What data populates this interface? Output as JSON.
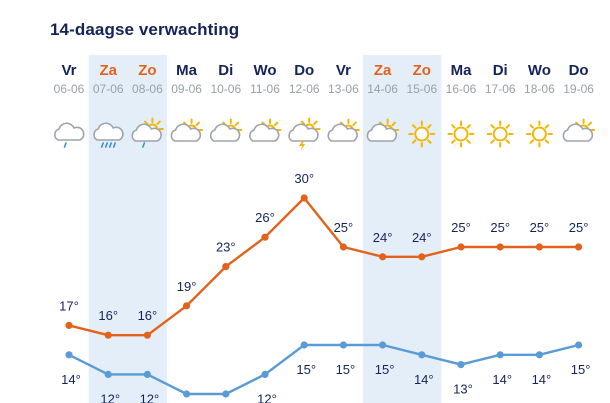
{
  "header": {
    "title": "14-daagse verwachting"
  },
  "colors": {
    "max_line": "#e2621b",
    "min_line": "#5b9bd5",
    "weekend_bg": "#e3eef9",
    "weekday_text": "#14245a",
    "weekend_text": "#e2621b",
    "label_text": "#14245a",
    "date_text": "#9aa0a6"
  },
  "days": [
    {
      "name": "Vr",
      "date": "06-06",
      "weekend": false,
      "icon": "rain-cloud-icon"
    },
    {
      "name": "Za",
      "date": "07-06",
      "weekend": true,
      "icon": "heavy-rain-cloud-icon"
    },
    {
      "name": "Zo",
      "date": "08-06",
      "weekend": true,
      "icon": "sun-cloud-rain-icon"
    },
    {
      "name": "Ma",
      "date": "09-06",
      "weekend": false,
      "icon": "sun-cloud-icon"
    },
    {
      "name": "Di",
      "date": "10-06",
      "weekend": false,
      "icon": "sun-cloud-icon"
    },
    {
      "name": "Wo",
      "date": "11-06",
      "weekend": false,
      "icon": "sun-cloud-icon"
    },
    {
      "name": "Do",
      "date": "12-06",
      "weekend": false,
      "icon": "thunder-sun-cloud-icon"
    },
    {
      "name": "Vr",
      "date": "13-06",
      "weekend": false,
      "icon": "sun-cloud-icon"
    },
    {
      "name": "Za",
      "date": "14-06",
      "weekend": true,
      "icon": "sun-cloud-icon"
    },
    {
      "name": "Zo",
      "date": "15-06",
      "weekend": true,
      "icon": "sun-icon"
    },
    {
      "name": "Ma",
      "date": "16-06",
      "weekend": false,
      "icon": "sun-icon"
    },
    {
      "name": "Di",
      "date": "17-06",
      "weekend": false,
      "icon": "sun-icon"
    },
    {
      "name": "Wo",
      "date": "18-06",
      "weekend": false,
      "icon": "sun-icon"
    },
    {
      "name": "Do",
      "date": "19-06",
      "weekend": false,
      "icon": "sun-cloud-icon"
    }
  ],
  "chart_data": {
    "type": "line",
    "title": "14-daagse verwachting",
    "x": [
      "06-06",
      "07-06",
      "08-06",
      "09-06",
      "10-06",
      "11-06",
      "12-06",
      "13-06",
      "14-06",
      "15-06",
      "16-06",
      "17-06",
      "18-06",
      "19-06"
    ],
    "series": [
      {
        "values": [
          17,
          16,
          16,
          19,
          23,
          26,
          30,
          25,
          24,
          24,
          25,
          25,
          25,
          25
        ],
        "labels": [
          "17°",
          "16°",
          "16°",
          "19°",
          "23°",
          "26°",
          "30°",
          "25°",
          "24°",
          "24°",
          "25°",
          "25°",
          "25°",
          "25°"
        ]
      },
      {
        "values": [
          14,
          12,
          12,
          10,
          10,
          12,
          15,
          15,
          15,
          14,
          13,
          14,
          14,
          15
        ],
        "labels": [
          "14°",
          "12°",
          "12°",
          "",
          "",
          "12°",
          "15°",
          "15°",
          "15°",
          "14°",
          "13°",
          "14°",
          "14°",
          "15°"
        ]
      }
    ],
    "ylim": [
      10,
      30
    ],
    "grid": false
  }
}
